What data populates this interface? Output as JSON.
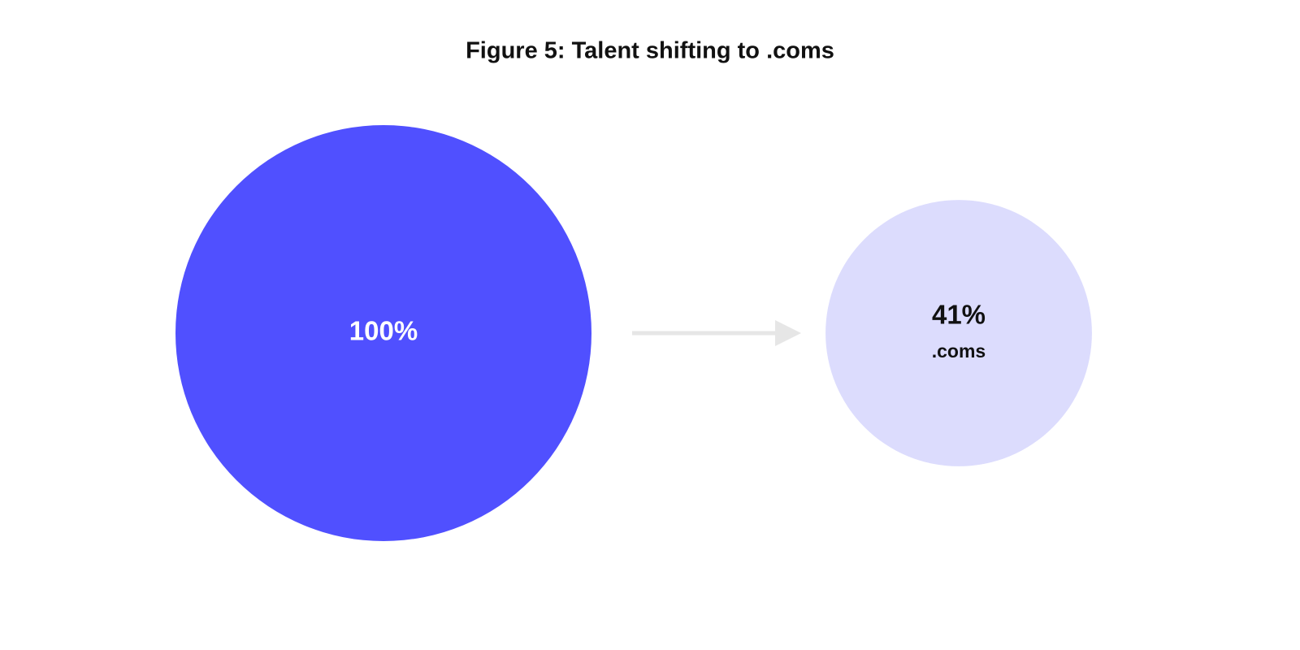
{
  "chart_data": {
    "type": "bubble",
    "title": "Figure 5: Talent shifting to .coms",
    "categories": [
      null,
      ".coms"
    ],
    "values": [
      100,
      41
    ],
    "value_labels": [
      "100%",
      "41%"
    ],
    "colors": [
      "#5050ff",
      "#dcdcfd"
    ]
  }
}
